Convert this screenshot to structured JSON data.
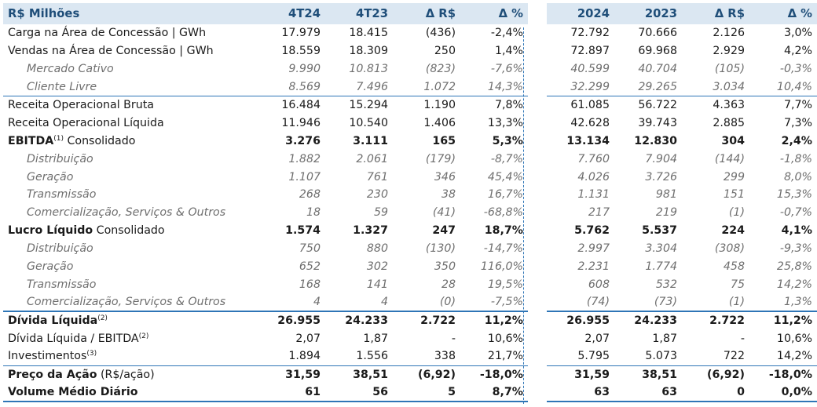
{
  "header": [
    "R$ Milhões",
    "4T24",
    "4T23",
    "Δ R$",
    "Δ %",
    "2024",
    "2023",
    "Δ R$",
    "Δ %"
  ],
  "rows": [
    {
      "label": "Carga na Área de Concessão | GWh",
      "values": [
        "17.979",
        "18.415",
        "(436)",
        "-2,4%",
        "72.792",
        "70.666",
        "2.126",
        "3,0%"
      ]
    },
    {
      "label": "Vendas na Área de Concessão | GWh",
      "values": [
        "18.559",
        "18.309",
        "250",
        "1,4%",
        "72.897",
        "69.968",
        "2.929",
        "4,2%"
      ]
    },
    {
      "label": "Mercado Cativo",
      "values": [
        "9.990",
        "10.813",
        "(823)",
        "-7,6%",
        "40.599",
        "40.704",
        "(105)",
        "-0,3%"
      ]
    },
    {
      "label": "Cliente Livre",
      "values": [
        "8.569",
        "7.496",
        "1.072",
        "14,3%",
        "32.299",
        "29.265",
        "3.034",
        "10,4%"
      ]
    },
    {
      "label": "Receita Operacional Bruta",
      "values": [
        "16.484",
        "15.294",
        "1.190",
        "7,8%",
        "61.085",
        "56.722",
        "4.363",
        "7,7%"
      ]
    },
    {
      "label": "Receita Operacional Líquida",
      "values": [
        "11.946",
        "10.540",
        "1.406",
        "13,3%",
        "42.628",
        "39.743",
        "2.885",
        "7,3%"
      ]
    },
    {
      "label": "EBITDA",
      "sup": "(1)",
      "label_suffix": " Consolidado",
      "values": [
        "3.276",
        "3.111",
        "165",
        "5,3%",
        "13.134",
        "12.830",
        "304",
        "2,4%"
      ]
    },
    {
      "label": "Distribuição",
      "values": [
        "1.882",
        "2.061",
        "(179)",
        "-8,7%",
        "7.760",
        "7.904",
        "(144)",
        "-1,8%"
      ]
    },
    {
      "label": "Geração",
      "values": [
        "1.107",
        "761",
        "346",
        "45,4%",
        "4.026",
        "3.726",
        "299",
        "8,0%"
      ]
    },
    {
      "label": "Transmissão",
      "values": [
        "268",
        "230",
        "38",
        "16,7%",
        "1.131",
        "981",
        "151",
        "15,3%"
      ]
    },
    {
      "label": "Comercialização, Serviços & Outros",
      "values": [
        "18",
        "59",
        "(41)",
        "-68,8%",
        "217",
        "219",
        "(1)",
        "-0,7%"
      ]
    },
    {
      "label": "Lucro Líquido",
      "label_suffix": " Consolidado",
      "values": [
        "1.574",
        "1.327",
        "247",
        "18,7%",
        "5.762",
        "5.537",
        "224",
        "4,1%"
      ]
    },
    {
      "label": "Distribuição",
      "values": [
        "750",
        "880",
        "(130)",
        "-14,7%",
        "2.997",
        "3.304",
        "(308)",
        "-9,3%"
      ]
    },
    {
      "label": "Geração",
      "values": [
        "652",
        "302",
        "350",
        "116,0%",
        "2.231",
        "1.774",
        "458",
        "25,8%"
      ]
    },
    {
      "label": "Transmissão",
      "values": [
        "168",
        "141",
        "28",
        "19,5%",
        "608",
        "532",
        "75",
        "14,2%"
      ]
    },
    {
      "label": "Comercialização, Serviços & Outros",
      "values": [
        "4",
        "4",
        "(0)",
        "-7,5%",
        "(74)",
        "(73)",
        "(1)",
        "1,3%"
      ]
    },
    {
      "label": "Dívida Líquida",
      "sup": "(2)",
      "values": [
        "26.955",
        "24.233",
        "2.722",
        "11,2%",
        "26.955",
        "24.233",
        "2.722",
        "11,2%"
      ]
    },
    {
      "label": "Dívida Líquida / EBITDA",
      "sup": "(2)",
      "values": [
        "2,07",
        "1,87",
        "-",
        "10,6%",
        "2,07",
        "1,87",
        "-",
        "10,6%"
      ]
    },
    {
      "label": "Investimentos",
      "sup": "(3)",
      "values": [
        "1.894",
        "1.556",
        "338",
        "21,7%",
        "5.795",
        "5.073",
        "722",
        "14,2%"
      ]
    },
    {
      "label": "Preço da Ação",
      "label_suffix": " (R$/ação)",
      "values": [
        "31,59",
        "38,51",
        "(6,92)",
        "-18,0%",
        "31,59",
        "38,51",
        "(6,92)",
        "-18,0%"
      ]
    },
    {
      "label": "Volume Médio Diário",
      "values": [
        "61",
        "56",
        "5",
        "8,7%",
        "63",
        "63",
        "0",
        "0,0%"
      ]
    }
  ],
  "colors": {
    "header_bg": "#dbe7f2",
    "header_text": "#1f4e79",
    "rule": "#2e75b6",
    "sub_text": "#6f6f6f"
  }
}
